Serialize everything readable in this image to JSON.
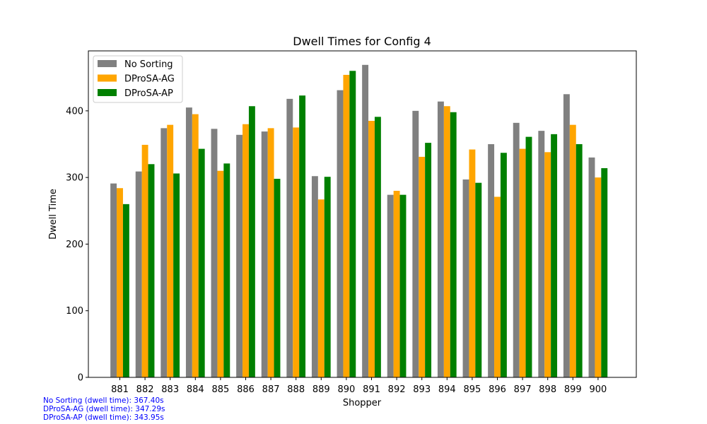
{
  "chart_data": {
    "type": "bar",
    "title": "Dwell Times for Config 4",
    "xlabel": "Shopper",
    "ylabel": "Dwell Time",
    "ylim": [
      0,
      490
    ],
    "yticks": [
      0,
      100,
      200,
      300,
      400
    ],
    "grid": false,
    "legend_position": "top-left",
    "categories": [
      "881",
      "882",
      "883",
      "884",
      "885",
      "886",
      "887",
      "888",
      "889",
      "890",
      "891",
      "892",
      "893",
      "894",
      "895",
      "896",
      "897",
      "898",
      "899",
      "900"
    ],
    "series": [
      {
        "name": "No Sorting",
        "color": "#808080",
        "values": [
          291,
          309,
          374,
          405,
          373,
          364,
          369,
          418,
          302,
          431,
          469,
          274,
          400,
          414,
          297,
          350,
          382,
          370,
          425,
          330
        ]
      },
      {
        "name": "DProSA-AG",
        "color": "#ffa500",
        "values": [
          284,
          349,
          379,
          395,
          310,
          380,
          374,
          375,
          267,
          454,
          385,
          280,
          331,
          407,
          342,
          271,
          343,
          338,
          379,
          300
        ]
      },
      {
        "name": "DProSA-AP",
        "color": "#008000",
        "values": [
          260,
          320,
          306,
          343,
          321,
          407,
          298,
          423,
          301,
          460,
          391,
          274,
          352,
          398,
          292,
          337,
          361,
          365,
          350,
          314
        ]
      }
    ]
  },
  "notes": {
    "no_sorting": "No Sorting (dwell time): 367.40s",
    "dprosa_ag": "DProSA-AG (dwell time): 347.29s",
    "dprosa_ap": "DProSA-AP (dwell time): 343.95s"
  }
}
